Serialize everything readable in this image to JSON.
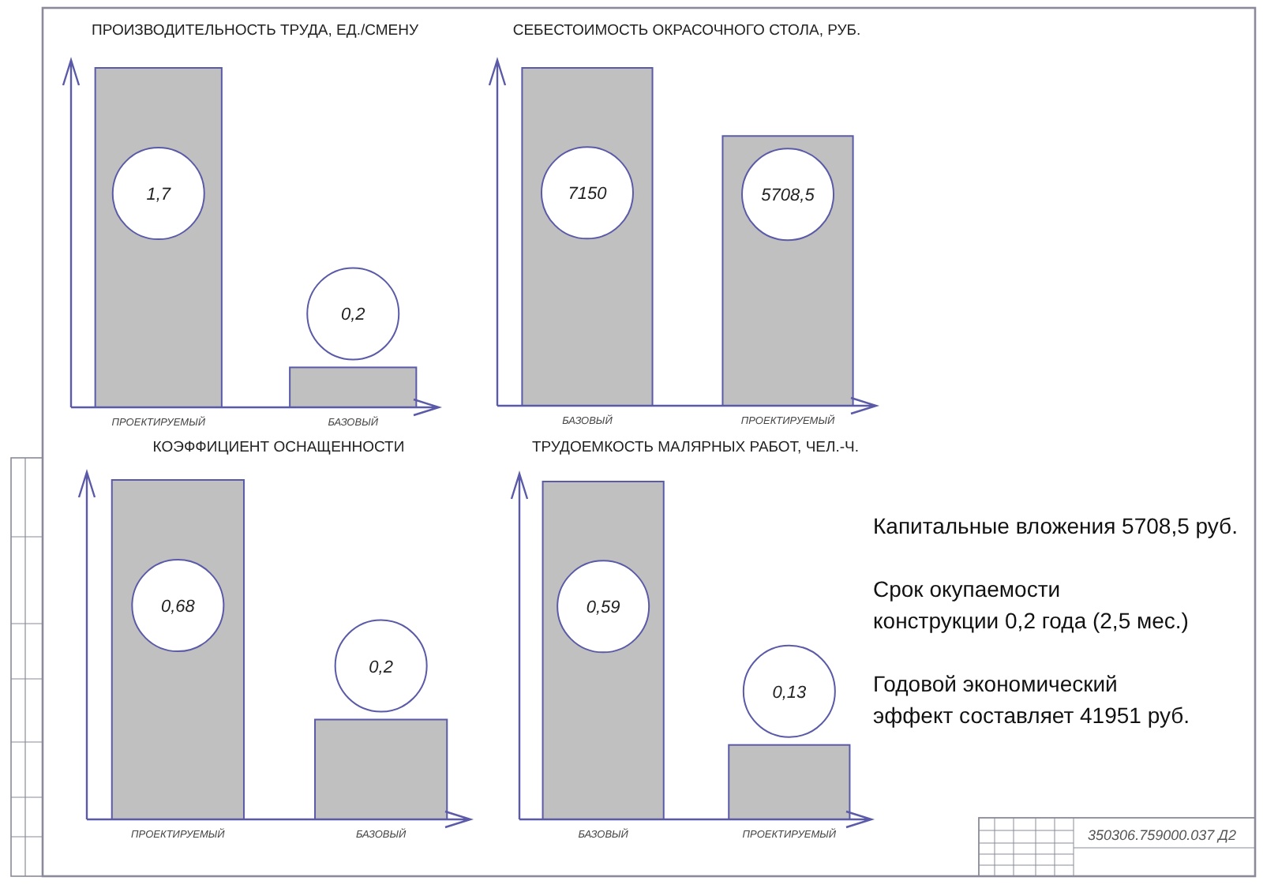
{
  "chart_data": [
    {
      "type": "bar",
      "title": "ПРОИЗВОДИТЕЛЬНОСТЬ ТРУДА, ЕД./СМЕНУ",
      "categories": [
        "ПРОЕКТИРУЕМЫЙ",
        "БАЗОВЫЙ"
      ],
      "values": [
        1.7,
        0.2
      ],
      "value_labels": [
        "1,7",
        "0,2"
      ],
      "color": "#c0c0c0",
      "tick_labels": "x"
    },
    {
      "type": "bar",
      "title": "СЕБЕСТОИМОСТЬ ОКРАСОЧНОГО СТОЛА, РУБ.",
      "categories": [
        "БАЗОВЫЙ",
        "ПРОЕКТИРУЕМЫЙ"
      ],
      "values": [
        7150,
        5708.5
      ],
      "value_labels": [
        "7150",
        "5708,5"
      ],
      "color": "#c0c0c0",
      "tick_labels": "x"
    },
    {
      "type": "bar",
      "title": "КОЭФФИЦИЕНТ ОСНАЩЕННОСТИ",
      "categories": [
        "ПРОЕКТИРУЕМЫЙ",
        "БАЗОВЫЙ"
      ],
      "values": [
        0.68,
        0.2
      ],
      "value_labels": [
        "0,68",
        "0,2"
      ],
      "color": "#c0c0c0",
      "tick_labels": "x"
    },
    {
      "type": "bar",
      "title": "ТРУДОЕМКОСТЬ МАЛЯРНЫХ РАБОТ, ЧЕЛ.-Ч.",
      "categories": [
        "БАЗОВЫЙ",
        "ПРОЕКТИРУЕМЫЙ"
      ],
      "values": [
        0.59,
        0.13
      ],
      "value_labels": [
        "0,59",
        "0,13"
      ],
      "color": "#c0c0c0",
      "tick_labels": "x"
    },
    {
      "type": "other",
      "annotations": [
        "Капитальные вложения 5708,5 руб.",
        "Срок окупаемости\nконструкции 0,2 года (2,5 мес.)",
        "Годовой экономический\nэффект составляет 41951 руб.",
        "350306.759000.037 Д2"
      ]
    }
  ]
}
